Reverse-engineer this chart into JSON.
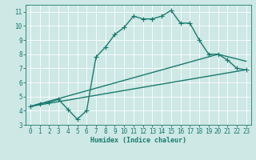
{
  "xlabel": "Humidex (Indice chaleur)",
  "bg_color": "#cde8e5",
  "grid_color": "#ffffff",
  "line_color": "#1a7a6e",
  "xlim": [
    -0.5,
    23.5
  ],
  "ylim": [
    3,
    11.5
  ],
  "xticks": [
    0,
    1,
    2,
    3,
    4,
    5,
    6,
    7,
    8,
    9,
    10,
    11,
    12,
    13,
    14,
    15,
    16,
    17,
    18,
    19,
    20,
    21,
    22,
    23
  ],
  "yticks": [
    3,
    4,
    5,
    6,
    7,
    8,
    9,
    10,
    11
  ],
  "series1_x": [
    0,
    1,
    2,
    3,
    4,
    5,
    6,
    7,
    8,
    9,
    10,
    11,
    12,
    13,
    14,
    15,
    16,
    17,
    18,
    19,
    20,
    21,
    22,
    23
  ],
  "series1_y": [
    4.3,
    4.5,
    4.6,
    4.8,
    4.1,
    3.4,
    4.0,
    7.8,
    8.5,
    9.4,
    9.9,
    10.7,
    10.5,
    10.5,
    10.7,
    11.1,
    10.2,
    10.2,
    9.0,
    8.0,
    8.0,
    7.6,
    7.0,
    6.9
  ],
  "series2_x": [
    0,
    23
  ],
  "series2_y": [
    4.3,
    6.9
  ],
  "series3_x": [
    0,
    20,
    23
  ],
  "series3_y": [
    4.3,
    8.0,
    7.5
  ],
  "line_width": 1.0
}
